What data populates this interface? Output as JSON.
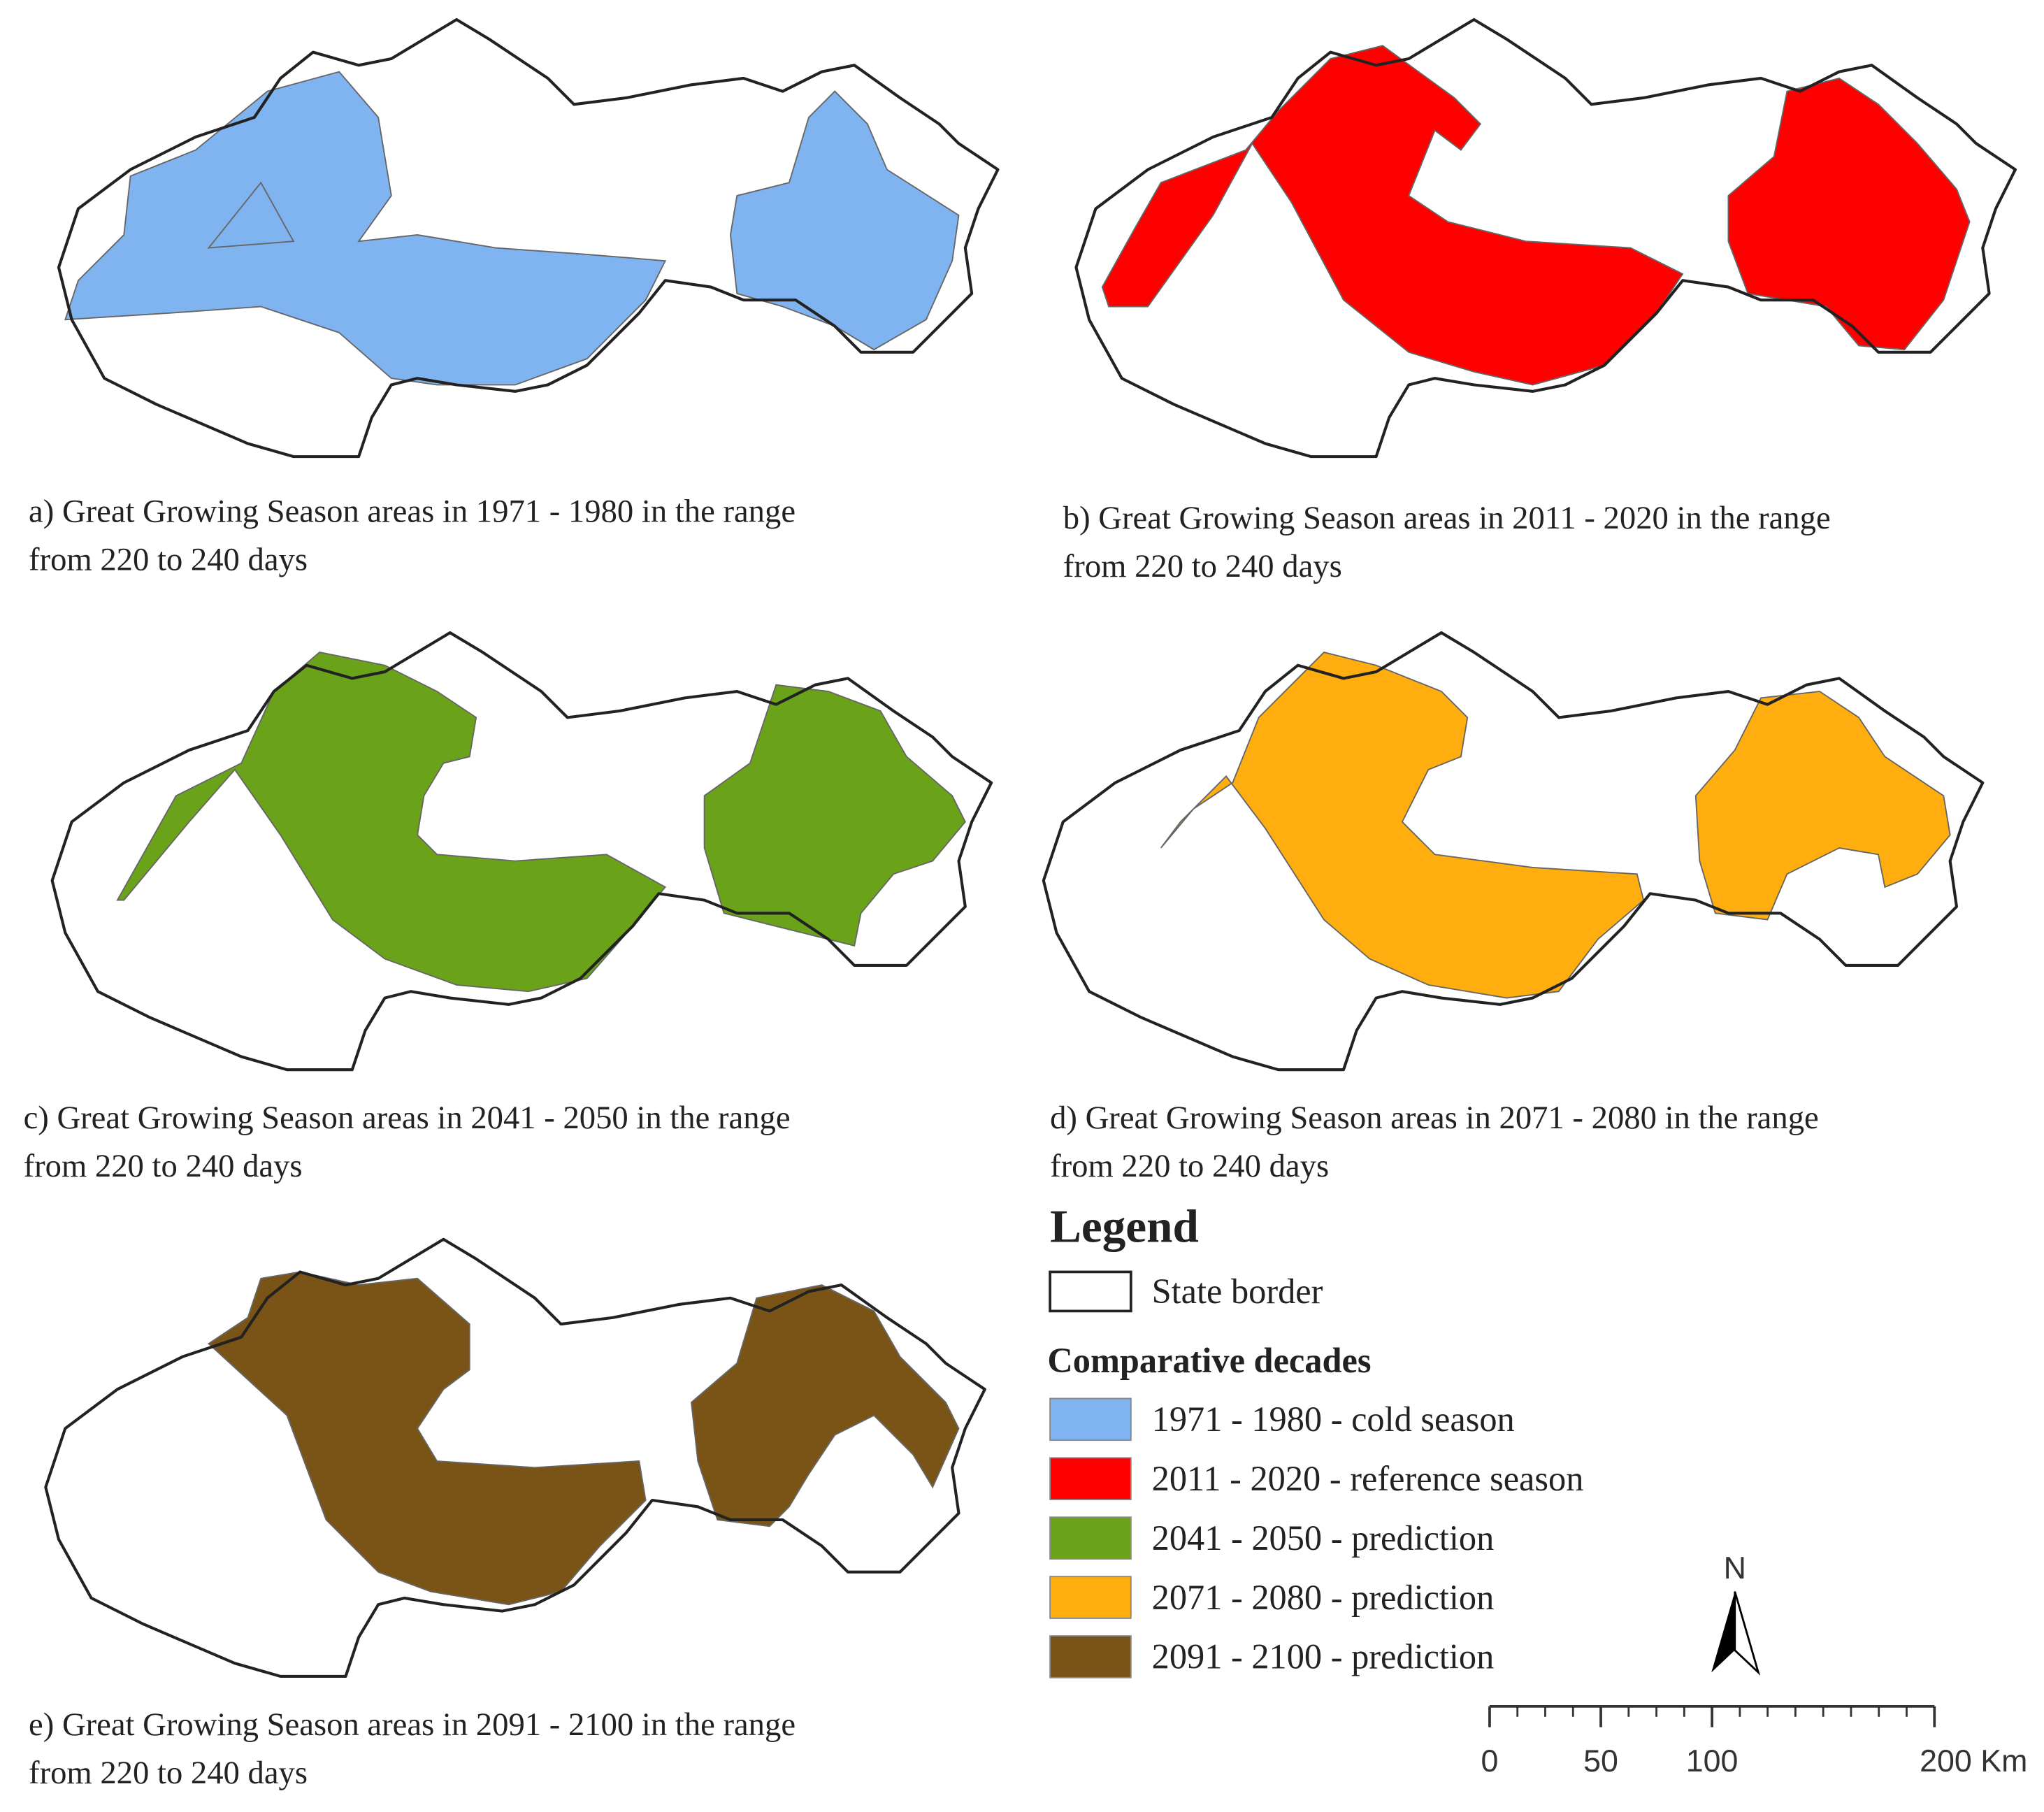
{
  "panels": [
    {
      "caption": [
        "a) Great Growing Season areas in 1971 - 1980 in the range",
        "from 220 to 240 days"
      ],
      "legend_index": 0
    },
    {
      "caption": [
        "b) Great Growing Season areas in 2011 - 2020 in the range",
        "from 220 to 240 days"
      ],
      "legend_index": 1
    },
    {
      "caption": [
        "c) Great Growing Season areas in 2041 - 2050 in the range",
        "from 220 to 240 days"
      ],
      "legend_index": 2
    },
    {
      "caption": [
        "d) Great Growing Season areas in 2071 - 2080 in the range",
        "from 220 to 240 days"
      ],
      "legend_index": 3
    },
    {
      "caption": [
        "e) Great Growing Season areas in 2091 - 2100 in the range",
        "from 220 to 240 days"
      ],
      "legend_index": 4
    }
  ],
  "legend": {
    "title": "Legend",
    "border_label": "State border",
    "group_title": "Comparative decades",
    "items": [
      {
        "label": "1971 - 1980 - cold season",
        "color": "#7fb4f0"
      },
      {
        "label": "2011 - 2020 - reference season",
        "color": "#ff0000"
      },
      {
        "label": "2041 - 2050 - prediction",
        "color": "#6aa31a"
      },
      {
        "label": "2071 - 2080 - prediction",
        "color": "#ffad0f"
      },
      {
        "label": "2091 - 2100 - prediction",
        "color": "#7a5416"
      }
    ]
  },
  "north": "N",
  "scale_bar": {
    "ticks": [
      0,
      50,
      100,
      {
        "value": 200,
        "label": "200 Km"
      }
    ]
  }
}
